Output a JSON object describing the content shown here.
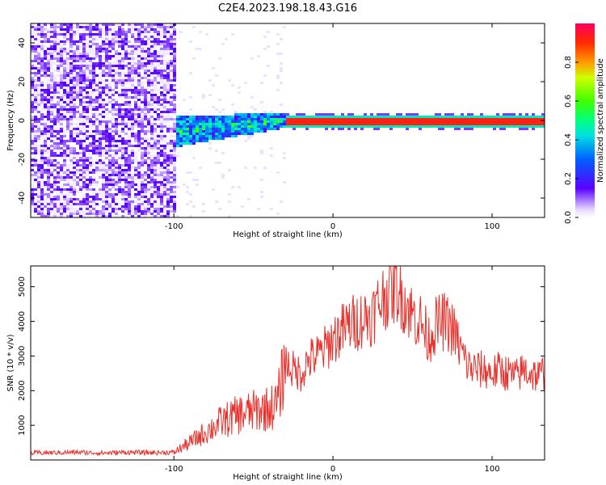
{
  "title": "C2E4.2023.198.18.43.G16",
  "colors": {
    "snr_line": "#e8312b",
    "frame": "#000000"
  },
  "chart_data": [
    {
      "type": "heatmap",
      "xlabel": "Height of straight line (km)",
      "ylabel": "Frequency (Hz)",
      "xlim": [
        -190,
        133
      ],
      "ylim": [
        -50,
        50
      ],
      "xticks": [
        -100,
        0,
        100
      ],
      "yticks": [
        -40,
        -20,
        0,
        20,
        40
      ],
      "colorbar": {
        "label": "Normalized spectral amplitude",
        "range": [
          0.0,
          1.0
        ],
        "ticks": [
          0.0,
          0.2,
          0.4,
          0.6,
          0.8
        ],
        "colormap": "hsv"
      }
    },
    {
      "type": "line",
      "xlabel": "Height of straight line (km)",
      "ylabel": "SNR (10 * v/v)",
      "xlim": [
        -190,
        133
      ],
      "ylim": [
        0,
        5600
      ],
      "xticks": [
        -100,
        0,
        100
      ],
      "yticks": [
        1000,
        2000,
        3000,
        4000,
        5000
      ],
      "series": [
        {
          "x": [
            -190,
            -175,
            -160,
            -145,
            -130,
            -115,
            -100,
            -90,
            -80,
            -70,
            -60,
            -50,
            -40,
            -35,
            -30,
            -25,
            -20,
            -15,
            -10,
            -5,
            0,
            5,
            10,
            15,
            20,
            25,
            30,
            35,
            40,
            45,
            50,
            55,
            60,
            65,
            70,
            75,
            80,
            85,
            90,
            95,
            100,
            105,
            110,
            115,
            120,
            125,
            130,
            133
          ],
          "values": [
            200,
            210,
            220,
            200,
            220,
            210,
            220,
            500,
            800,
            1100,
            1300,
            1400,
            1500,
            1600,
            2800,
            2600,
            2500,
            2900,
            3000,
            3200,
            3500,
            3700,
            3900,
            4000,
            4100,
            4200,
            4600,
            4900,
            5000,
            4600,
            4200,
            4000,
            3500,
            3900,
            4000,
            3800,
            3200,
            2700,
            2600,
            2600,
            2500,
            2600,
            2500,
            2400,
            2600,
            2500,
            2400,
            2600
          ]
        }
      ]
    }
  ]
}
